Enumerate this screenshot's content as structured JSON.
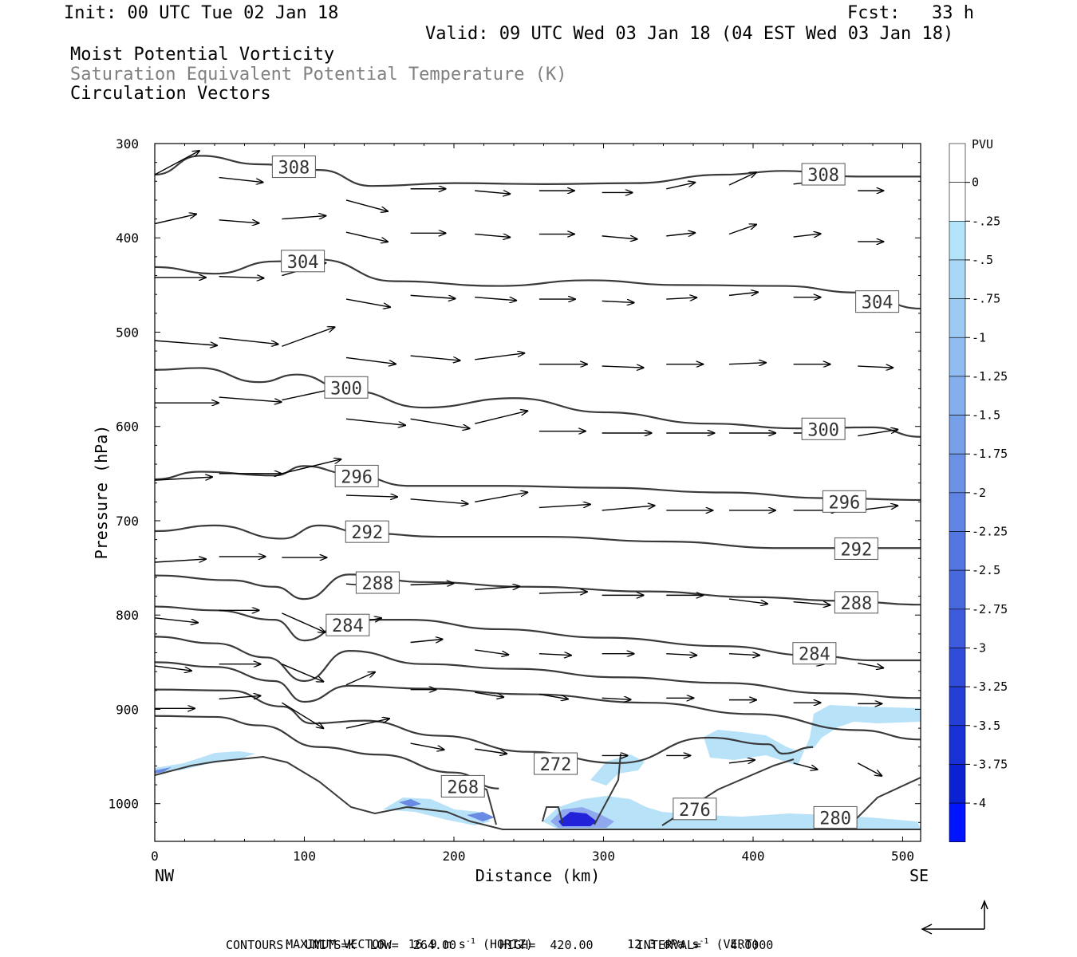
{
  "header": {
    "init": "Init: 00 UTC Tue 02 Jan 18",
    "fcst": "Fcst:   33 h",
    "valid": "Valid: 09 UTC Wed 03 Jan 18 (04 EST Wed 03 Jan 18)",
    "field1": "Moist Potential Vorticity",
    "field2": "Saturation Equivalent Potential Temperature (K)",
    "field3": "Circulation Vectors"
  },
  "footer": {
    "max_vector_a": "MAXIMUM VECTOR:  16.9 m s",
    "max_vector_b": "-1",
    "max_vector_c": " (HORIZ)",
    "max_vector_d": "12.3 dPa s",
    "max_vector_e": "-1",
    "max_vector_f": " (VERT)",
    "contours": "CONTOURS:  UNITS=K  LOW=  264.00      HIGH=  420.00      INTERVAL=    4.0000"
  },
  "colors": {
    "contour": "#3a3a3a",
    "arrow": "#000000",
    "pv_light": "#b3e0f7",
    "pv_dark": "#1a1ad6"
  },
  "chart_data": {
    "type": "cross-section",
    "xlabel": "Distance (km)",
    "ylabel": "Pressure (hPa)",
    "xlim": [
      0,
      512
    ],
    "ylim": [
      1040,
      300
    ],
    "xticks": [
      0,
      100,
      200,
      300,
      400,
      500
    ],
    "yticks": [
      300,
      400,
      500,
      600,
      700,
      800,
      900,
      1000
    ],
    "x_end_labels": {
      "left": "NW",
      "right": "SE"
    },
    "colorbar": {
      "title": "PVU",
      "levels": [
        "0",
        "-.25",
        "-.5",
        "-.75",
        "-1",
        "-1.25",
        "-1.5",
        "-1.75",
        "-2",
        "-2.25",
        "-2.5",
        "-2.75",
        "-3",
        "-3.25",
        "-3.5",
        "-3.75",
        "-4"
      ],
      "colors": [
        "#ffffff",
        "#ffffff",
        "#b4e4fa",
        "#a8d8f6",
        "#9ccaf2",
        "#90bcef",
        "#84aeec",
        "#78a0e9",
        "#6c92e6",
        "#6084e3",
        "#5476e0",
        "#4868dd",
        "#3c5adb",
        "#304cd8",
        "#243ed6",
        "#1830d4",
        "#0c22d2",
        "#0014ff"
      ]
    },
    "isentropes": [
      {
        "theta": 308,
        "label_at": [
          [
            93,
            325
          ],
          [
            447,
            333
          ]
        ],
        "x": [
          0,
          30,
          70,
          110,
          145,
          200,
          260,
          320,
          380,
          420,
          470,
          512
        ],
        "p": [
          333,
          313,
          322,
          328,
          345,
          342,
          343,
          342,
          333,
          329,
          335,
          335
        ]
      },
      {
        "theta": 304,
        "label_at": [
          [
            99,
            425
          ],
          [
            483,
            468
          ]
        ],
        "x": [
          0,
          40,
          80,
          110,
          160,
          230,
          290,
          350,
          420,
          470,
          512
        ],
        "p": [
          431,
          438,
          425,
          423,
          446,
          451,
          445,
          450,
          451,
          458,
          475
        ]
      },
      {
        "theta": 300,
        "label_at": [
          [
            128,
            559
          ],
          [
            447,
            603
          ]
        ],
        "x": [
          0,
          30,
          70,
          95,
          130,
          180,
          240,
          300,
          370,
          430,
          480,
          512
        ],
        "p": [
          540,
          538,
          553,
          545,
          562,
          580,
          570,
          585,
          597,
          602,
          601,
          611
        ]
      },
      {
        "theta": 296,
        "label_at": [
          [
            135,
            653
          ],
          [
            461,
            680
          ]
        ],
        "x": [
          0,
          30,
          80,
          100,
          130,
          170,
          230,
          300,
          380,
          450,
          512
        ],
        "p": [
          656,
          648,
          652,
          642,
          650,
          663,
          663,
          665,
          670,
          676,
          678
        ]
      },
      {
        "theta": 292,
        "label_at": [
          [
            142,
            712
          ],
          [
            469,
            730
          ]
        ],
        "x": [
          0,
          40,
          85,
          110,
          140,
          190,
          260,
          340,
          420,
          470,
          512
        ],
        "p": [
          711,
          705,
          719,
          705,
          713,
          717,
          717,
          722,
          729,
          729,
          729
        ]
      },
      {
        "theta": 288,
        "label_at": [
          [
            149,
            766
          ],
          [
            469,
            787
          ]
        ],
        "x": [
          0,
          50,
          80,
          100,
          130,
          180,
          250,
          330,
          400,
          460,
          512
        ],
        "p": [
          758,
          763,
          770,
          783,
          757,
          765,
          770,
          775,
          781,
          785,
          789
        ]
      },
      {
        "theta": 284,
        "label_at": [
          [
            129,
            811
          ],
          [
            441,
            841
          ]
        ],
        "x": [
          0,
          40,
          80,
          100,
          130,
          170,
          230,
          300,
          380,
          440,
          480,
          512
        ],
        "p": [
          791,
          795,
          805,
          827,
          805,
          805,
          815,
          824,
          833,
          843,
          848,
          848
        ]
      },
      {
        "theta": 280,
        "label_at": [
          [
            455,
            1015
          ]
        ],
        "x": [
          0,
          40,
          75,
          100,
          130,
          180,
          240,
          310,
          380,
          450,
          512
        ],
        "p": [
          823,
          830,
          845,
          870,
          838,
          852,
          857,
          866,
          872,
          883,
          888
        ]
      },
      {
        "theta": 276,
        "label_at": [
          [
            361,
            1006
          ]
        ],
        "x": [
          0,
          40,
          80,
          100,
          130,
          180,
          250,
          330,
          400,
          470,
          512
        ],
        "p": [
          850,
          855,
          870,
          892,
          875,
          878,
          884,
          893,
          905,
          922,
          932
        ]
      },
      {
        "theta": 272,
        "label_at": [
          [
            268,
            958
          ]
        ],
        "x": [
          0,
          50,
          85,
          105,
          140,
          190,
          250,
          310,
          370,
          410,
          420,
          440
        ],
        "p": [
          879,
          880,
          897,
          915,
          912,
          928,
          945,
          957,
          930,
          937,
          947,
          940
        ]
      },
      {
        "theta": 268,
        "label_at": [
          [
            206,
            982
          ]
        ],
        "x": [
          0,
          40,
          70,
          110,
          150,
          200,
          230
        ],
        "p": [
          907,
          908,
          917,
          940,
          948,
          967,
          984
        ]
      }
    ],
    "pv_region": "negative MPV (0 to -4 PVU) near surface, 240–290 km below 1000 hPa and along 880–1040 hPa in the southeast"
  }
}
